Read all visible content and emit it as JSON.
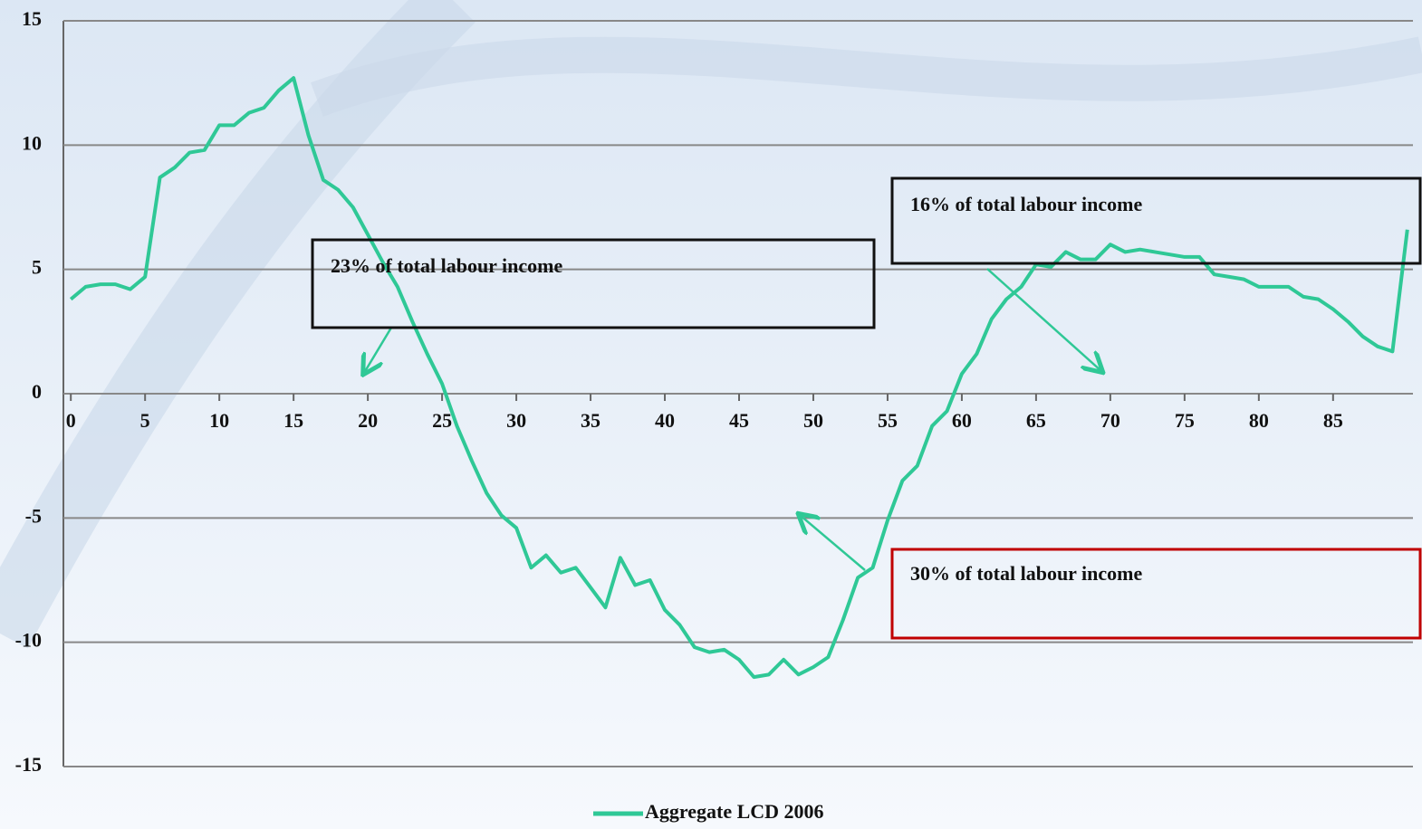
{
  "chart_data": {
    "type": "line",
    "x": [
      0,
      1,
      2,
      3,
      4,
      5,
      6,
      7,
      8,
      9,
      10,
      11,
      12,
      13,
      14,
      15,
      16,
      17,
      18,
      19,
      20,
      21,
      22,
      23,
      24,
      25,
      26,
      27,
      28,
      29,
      30,
      31,
      32,
      33,
      34,
      35,
      36,
      37,
      38,
      39,
      40,
      41,
      42,
      43,
      44,
      45,
      46,
      47,
      48,
      49,
      50,
      51,
      52,
      53,
      54,
      55,
      56,
      57,
      58,
      59,
      60,
      61,
      62,
      63,
      64,
      65,
      66,
      67,
      68,
      69,
      70,
      71,
      72,
      73,
      74,
      75,
      76,
      77,
      78,
      79,
      80,
      81,
      82,
      83,
      84,
      85,
      86,
      87,
      88,
      89,
      90
    ],
    "series": [
      {
        "name": "Aggregate LCD 2006",
        "color": "#2fc896",
        "values": [
          3.8,
          4.3,
          4.4,
          4.4,
          4.2,
          4.7,
          8.7,
          9.1,
          9.7,
          9.8,
          10.8,
          10.8,
          11.3,
          11.5,
          12.2,
          12.7,
          10.4,
          8.6,
          8.2,
          7.5,
          6.4,
          5.3,
          4.3,
          2.9,
          1.6,
          0.4,
          -1.3,
          -2.7,
          -4.0,
          -4.9,
          -5.4,
          -7.0,
          -6.5,
          -7.2,
          -7.0,
          -7.8,
          -8.6,
          -6.6,
          -7.7,
          -7.5,
          -8.7,
          -9.3,
          -10.2,
          -10.4,
          -10.3,
          -10.7,
          -11.4,
          -11.3,
          -10.7,
          -11.3,
          -11.0,
          -10.6,
          -9.1,
          -7.4,
          -7.0,
          -5.1,
          -3.5,
          -2.9,
          -1.3,
          -0.7,
          0.8,
          1.6,
          3.0,
          3.8,
          4.3,
          5.2,
          5.1,
          5.7,
          5.4,
          5.4,
          6.0,
          5.7,
          5.8,
          5.7,
          5.6,
          5.5,
          5.5,
          4.8,
          4.7,
          4.6,
          4.3,
          4.3,
          4.3,
          3.9,
          3.8,
          3.4,
          2.9,
          2.3,
          1.9,
          1.7,
          6.6
        ]
      }
    ],
    "xlim": [
      -0.5,
      90.5
    ],
    "xticks": [
      0,
      5,
      10,
      15,
      20,
      25,
      30,
      35,
      40,
      45,
      50,
      55,
      60,
      65,
      70,
      75,
      80,
      85
    ],
    "ylim": [
      -15,
      15
    ],
    "yticks": [
      -15,
      -10,
      -5,
      0,
      5,
      10,
      15
    ],
    "grid": true,
    "annotations": [
      "23% of total labour income",
      "16% of total labour income",
      "30% of total labour income"
    ]
  }
}
